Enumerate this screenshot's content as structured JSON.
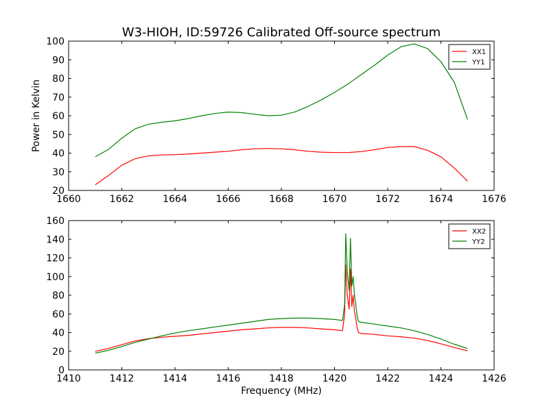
{
  "title": "W3-HIOH, ID:59726 Calibrated Off-source spectrum",
  "chart_data": [
    {
      "type": "line",
      "title": "W3-HIOH, ID:59726 Calibrated Off-source spectrum",
      "xlabel": "",
      "ylabel": "Power in Kelvin",
      "xlim": [
        1660,
        1676
      ],
      "ylim": [
        20,
        100
      ],
      "xticks": [
        1660,
        1662,
        1664,
        1666,
        1668,
        1670,
        1672,
        1674,
        1676
      ],
      "yticks": [
        20,
        30,
        40,
        50,
        60,
        70,
        80,
        90,
        100
      ],
      "xtick_labels": [
        "1660",
        "1662",
        "1664",
        "1666",
        "1668",
        "1670",
        "1672",
        "1674",
        "1676"
      ],
      "ytick_labels": [
        "20",
        "30",
        "40",
        "50",
        "60",
        "70",
        "80",
        "90",
        "100"
      ],
      "grid": false,
      "legend_position": "top-right",
      "series": [
        {
          "name": "XX1",
          "color": "#ff0000",
          "x": [
            1661.0,
            1661.5,
            1662.0,
            1662.5,
            1663.0,
            1663.5,
            1664.0,
            1664.5,
            1665.0,
            1665.5,
            1666.0,
            1666.5,
            1667.0,
            1667.5,
            1668.0,
            1668.5,
            1669.0,
            1669.5,
            1670.0,
            1670.5,
            1671.0,
            1671.5,
            1672.0,
            1672.5,
            1673.0,
            1673.5,
            1674.0,
            1674.5,
            1675.0
          ],
          "y": [
            23,
            28,
            33.5,
            37,
            38.5,
            39,
            39.2,
            39.5,
            40,
            40.5,
            41,
            41.8,
            42.3,
            42.5,
            42.3,
            41.8,
            41,
            40.5,
            40.3,
            40.3,
            40.8,
            41.8,
            43,
            43.5,
            43.5,
            41.5,
            38,
            32,
            25
          ]
        },
        {
          "name": "YY1",
          "color": "#008000",
          "x": [
            1661.0,
            1661.5,
            1662.0,
            1662.5,
            1663.0,
            1663.5,
            1664.0,
            1664.5,
            1665.0,
            1665.5,
            1666.0,
            1666.5,
            1667.0,
            1667.5,
            1668.0,
            1668.5,
            1669.0,
            1669.5,
            1670.0,
            1670.5,
            1671.0,
            1671.5,
            1672.0,
            1672.5,
            1673.0,
            1673.5,
            1674.0,
            1674.5,
            1675.0
          ],
          "y": [
            38,
            42,
            48,
            53,
            55.5,
            56.5,
            57.3,
            58.5,
            60,
            61.2,
            62,
            61.7,
            60.8,
            60,
            60.3,
            62,
            65,
            68.5,
            72.5,
            77,
            82,
            87,
            92.5,
            97,
            98.5,
            96,
            89,
            78,
            58
          ]
        }
      ]
    },
    {
      "type": "line",
      "title": "",
      "xlabel": "Frequency (MHz)",
      "ylabel": "",
      "xlim": [
        1410,
        1426
      ],
      "ylim": [
        0,
        160
      ],
      "xticks": [
        1410,
        1412,
        1414,
        1416,
        1418,
        1420,
        1422,
        1424,
        1426
      ],
      "yticks": [
        0,
        20,
        40,
        60,
        80,
        100,
        120,
        140,
        160
      ],
      "xtick_labels": [
        "1410",
        "1412",
        "1414",
        "1416",
        "1418",
        "1420",
        "1422",
        "1424",
        "1426"
      ],
      "ytick_labels": [
        "0",
        "20",
        "40",
        "60",
        "80",
        "100",
        "120",
        "140",
        "160"
      ],
      "grid": false,
      "legend_position": "top-right",
      "series": [
        {
          "name": "XX2",
          "color": "#ff0000",
          "x": [
            1411.0,
            1411.5,
            1412.0,
            1412.5,
            1413.0,
            1413.5,
            1414.0,
            1414.5,
            1415.0,
            1415.5,
            1416.0,
            1416.5,
            1417.0,
            1417.5,
            1418.0,
            1418.5,
            1419.0,
            1419.5,
            1420.0,
            1420.3,
            1420.38,
            1420.42,
            1420.48,
            1420.55,
            1420.6,
            1420.65,
            1420.7,
            1420.75,
            1420.8,
            1420.85,
            1420.9,
            1421.0,
            1421.5,
            1422.0,
            1422.5,
            1423.0,
            1423.5,
            1424.0,
            1424.5,
            1425.0
          ],
          "y": [
            20,
            23,
            27,
            31,
            33.5,
            35,
            36,
            37,
            38.5,
            40,
            41.5,
            43,
            44,
            45,
            45.5,
            45.5,
            45,
            44,
            43,
            42,
            60,
            113,
            80,
            65,
            108,
            68,
            80,
            62,
            55,
            45,
            40,
            39,
            38,
            36.5,
            35.5,
            34,
            31.5,
            28,
            24,
            20.5
          ]
        },
        {
          "name": "YY2",
          "color": "#008000",
          "x": [
            1411.0,
            1411.5,
            1412.0,
            1412.5,
            1413.0,
            1413.5,
            1414.0,
            1414.5,
            1415.0,
            1415.5,
            1416.0,
            1416.5,
            1417.0,
            1417.5,
            1418.0,
            1418.5,
            1419.0,
            1419.5,
            1420.0,
            1420.3,
            1420.38,
            1420.42,
            1420.48,
            1420.55,
            1420.6,
            1420.65,
            1420.7,
            1420.75,
            1420.8,
            1420.85,
            1420.9,
            1421.0,
            1421.5,
            1422.0,
            1422.5,
            1423.0,
            1423.5,
            1424.0,
            1424.5,
            1425.0
          ],
          "y": [
            18,
            21,
            25,
            29.5,
            33,
            36.5,
            39.5,
            42,
            44,
            46,
            48,
            50,
            52,
            54,
            55,
            55.5,
            55.5,
            55,
            54,
            53,
            70,
            146,
            105,
            85,
            141,
            90,
            100,
            80,
            70,
            58,
            52,
            51,
            49,
            47,
            45,
            42,
            38,
            33,
            27.5,
            23
          ]
        }
      ]
    }
  ]
}
